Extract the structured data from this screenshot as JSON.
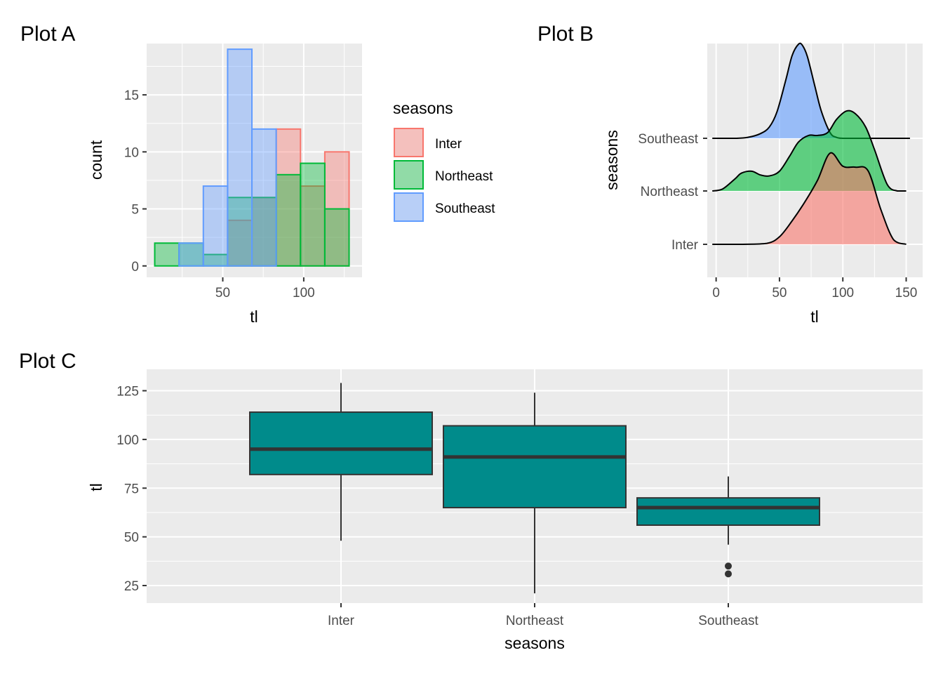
{
  "palette": {
    "Inter": "#F8766D",
    "Northeast": "#00BA38",
    "Southeast": "#619CFF",
    "box_fill": "#008B8B",
    "box_line": "#333333",
    "panel_bg": "#EBEBEB"
  },
  "chart_data": [
    {
      "title": "Plot A",
      "type": "bar",
      "subtype": "histogram",
      "xlabel": "tl",
      "ylabel": "count",
      "xlim": [
        3,
        136
      ],
      "ylim": [
        -1,
        19.5
      ],
      "x_ticks": [
        50,
        100
      ],
      "y_ticks": [
        0,
        5,
        10,
        15
      ],
      "bins": [
        [
          8,
          23
        ],
        [
          23,
          38
        ],
        [
          38,
          53
        ],
        [
          53,
          68
        ],
        [
          68,
          83
        ],
        [
          83,
          98
        ],
        [
          98,
          113
        ],
        [
          113,
          128
        ]
      ],
      "series": [
        {
          "name": "Inter",
          "values": [
            0,
            0,
            0,
            4,
            6,
            12,
            7,
            10
          ]
        },
        {
          "name": "Northeast",
          "values": [
            2,
            2,
            1,
            6,
            6,
            8,
            9,
            5
          ]
        },
        {
          "name": "Southeast",
          "values": [
            0,
            2,
            7,
            19,
            12,
            0,
            0,
            0
          ]
        }
      ],
      "legend": {
        "title": "seasons",
        "position": "right",
        "items": [
          "Inter",
          "Northeast",
          "Southeast"
        ]
      },
      "grid": true
    },
    {
      "title": "Plot B",
      "type": "area",
      "subtype": "ridgeline density",
      "xlabel": "tl",
      "ylabel": "seasons",
      "xlim": [
        -7,
        163
      ],
      "x_ticks": [
        0,
        50,
        100,
        150
      ],
      "categories": [
        "Inter",
        "Northeast",
        "Southeast"
      ],
      "series": [
        {
          "name": "Inter",
          "x": [
            -3,
            20,
            40,
            50,
            60,
            70,
            80,
            90,
            100,
            110,
            120,
            130,
            140,
            150
          ],
          "y": [
            0.0,
            0.0,
            0.01,
            0.08,
            0.25,
            0.45,
            0.68,
            0.97,
            0.83,
            0.82,
            0.78,
            0.37,
            0.05,
            0.0
          ]
        },
        {
          "name": "Northeast",
          "x": [
            -3,
            5,
            15,
            20,
            28,
            35,
            42,
            50,
            58,
            65,
            73,
            80,
            88,
            95,
            103,
            110,
            118,
            125,
            135,
            143,
            150
          ],
          "y": [
            0.0,
            0.02,
            0.13,
            0.19,
            0.21,
            0.17,
            0.16,
            0.21,
            0.37,
            0.52,
            0.59,
            0.59,
            0.62,
            0.76,
            0.85,
            0.82,
            0.68,
            0.44,
            0.07,
            0.0,
            0.0
          ]
        },
        {
          "name": "Southeast",
          "x": [
            -3,
            15,
            25,
            35,
            42,
            48,
            55,
            60,
            65,
            68,
            72,
            78,
            83,
            90,
            95,
            100,
            110,
            130,
            153
          ],
          "y": [
            0.0,
            0.0,
            0.01,
            0.05,
            0.12,
            0.28,
            0.62,
            0.88,
            1.0,
            0.99,
            0.87,
            0.55,
            0.29,
            0.06,
            0.01,
            0.0,
            0.0,
            0.0,
            0.0
          ]
        }
      ],
      "grid": true
    },
    {
      "title": "Plot C",
      "type": "box",
      "xlabel": "seasons",
      "ylabel": "tl",
      "ylim": [
        16,
        136
      ],
      "y_ticks": [
        25,
        50,
        75,
        100,
        125
      ],
      "categories": [
        "Inter",
        "Northeast",
        "Southeast"
      ],
      "boxes": [
        {
          "category": "Inter",
          "whisker_low": 48,
          "q1": 82,
          "median": 95,
          "q3": 114,
          "whisker_high": 129,
          "outliers": []
        },
        {
          "category": "Northeast",
          "whisker_low": 21,
          "q1": 65,
          "median": 91,
          "q3": 107,
          "whisker_high": 124,
          "outliers": []
        },
        {
          "category": "Southeast",
          "whisker_low": 46,
          "q1": 56,
          "median": 65,
          "q3": 70,
          "whisker_high": 81,
          "outliers": [
            31,
            35
          ]
        }
      ],
      "grid": true
    }
  ]
}
